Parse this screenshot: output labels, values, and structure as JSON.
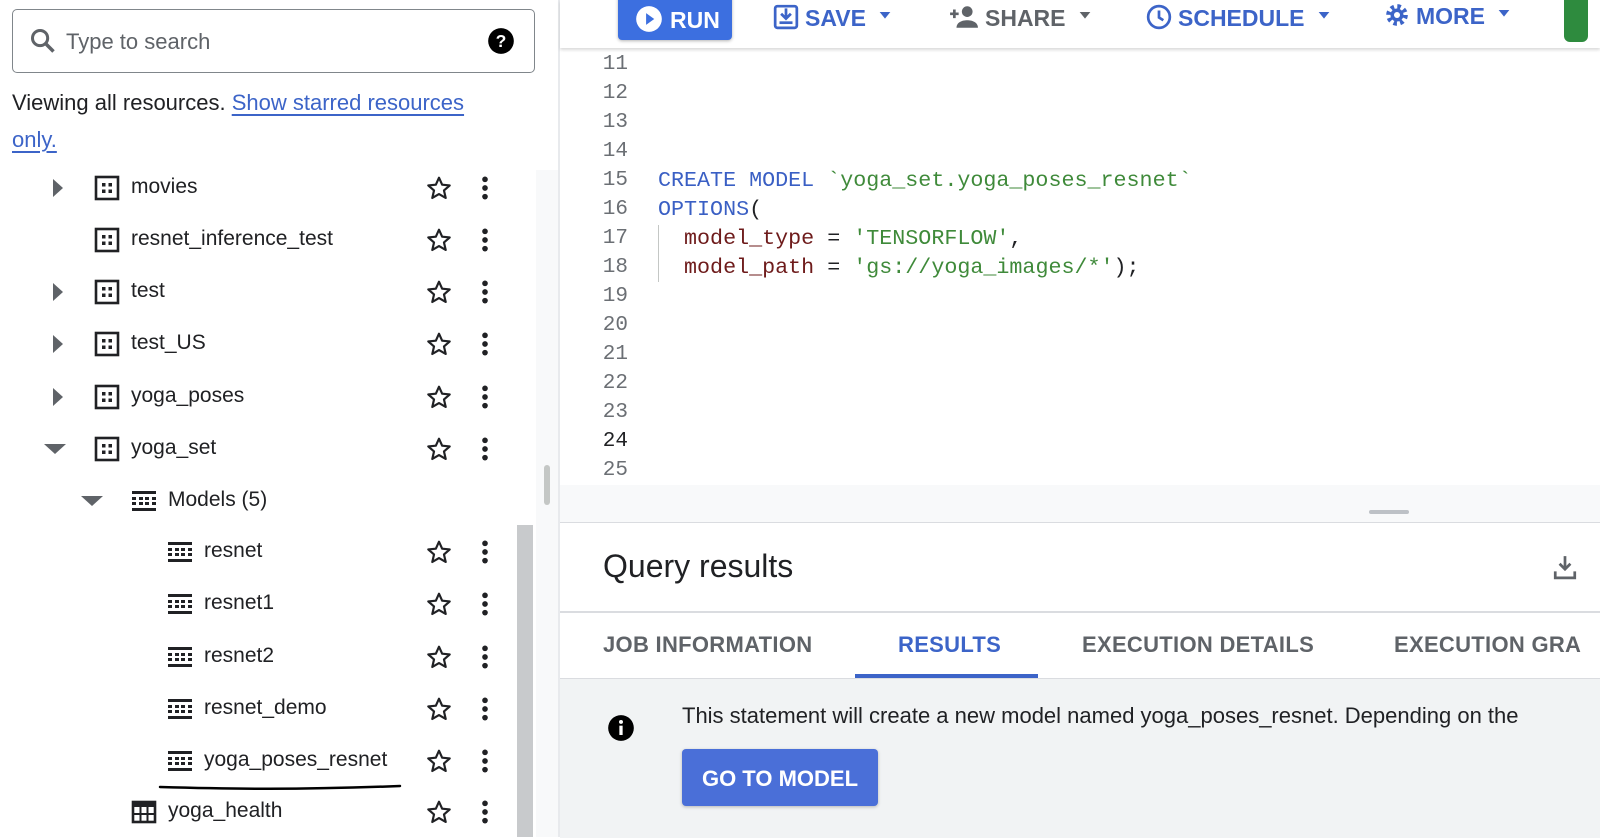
{
  "search": {
    "placeholder": "Type to search"
  },
  "notice": {
    "text": "Viewing all resources.",
    "link": "Show starred resources only."
  },
  "tree": {
    "items": [
      "movies",
      "resnet_inference_test",
      "test",
      "test_US",
      "yoga_poses",
      "yoga_set",
      "Models (5)",
      "resnet",
      "resnet1",
      "resnet2",
      "resnet_demo",
      "yoga_poses_resnet",
      "yoga_health"
    ]
  },
  "toolbar": {
    "run": "RUN",
    "save": "SAVE",
    "share": "SHARE",
    "schedule": "SCHEDULE",
    "more": "MORE"
  },
  "editor": {
    "line_numbers": [
      11,
      12,
      13,
      14,
      15,
      16,
      17,
      18,
      19,
      20,
      21,
      22,
      23,
      24,
      25
    ],
    "code": [
      [
        "CREATE",
        "MODEL",
        "`yoga_set.yoga_poses_resnet`"
      ],
      [
        "OPTIONS",
        "("
      ],
      [
        "model_type",
        "=",
        "'TENSORFLOW'",
        ","
      ],
      [
        "model_path",
        "=",
        "'gs://yoga_images/*'",
        ")",
        ";"
      ]
    ]
  },
  "results": {
    "title": "Query results",
    "tabs": [
      "JOB INFORMATION",
      "RESULTS",
      "EXECUTION DETAILS",
      "EXECUTION GRA"
    ],
    "message": "This statement will create a new model named yoga_poses_resnet. Depending on the",
    "button": "GO TO MODEL"
  }
}
